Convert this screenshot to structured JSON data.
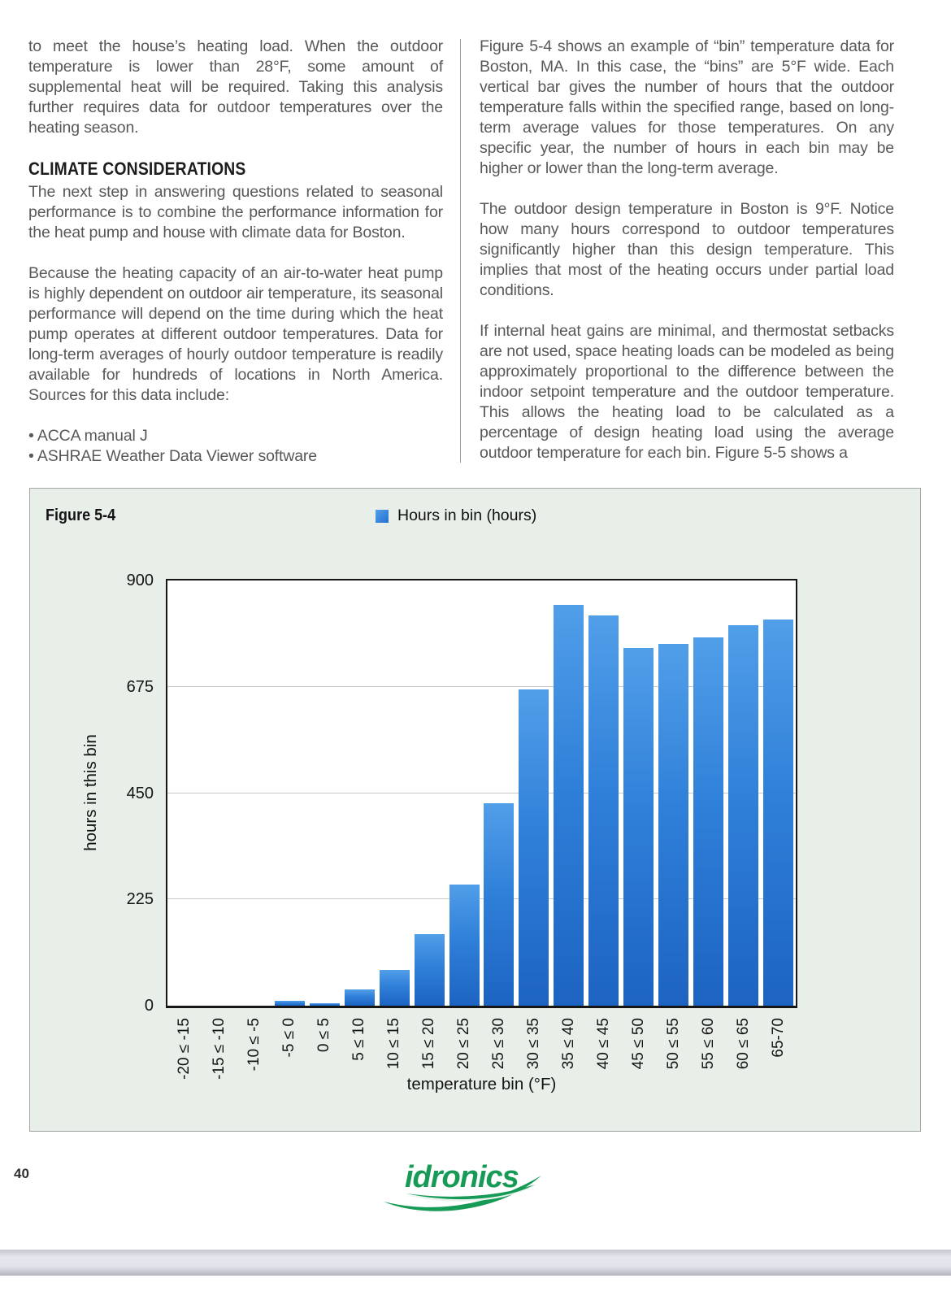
{
  "article": {
    "left_column": {
      "para1": "to meet the house’s heating load. When the outdoor temperature is lower than 28°F, some amount of supplemental heat will be required. Taking this analysis further requires data for outdoor temperatures over the heating season.",
      "heading": "CLIMATE CONSIDERATIONS",
      "para2": "The next step in answering questions related to seasonal performance is to combine the performance information for the heat pump and house with climate data for Boston.",
      "para3": "Because the heating capacity of an air-to-water heat pump is highly dependent on outdoor air temperature, its seasonal performance will depend on the time during which the heat pump operates at different outdoor temperatures. Data for long-term averages of hourly outdoor temperature is readily available for hundreds of locations in North America. Sources for this data include:",
      "bullets": [
        "ACCA manual J",
        "ASHRAE Weather Data Viewer software"
      ]
    },
    "right_column": {
      "para1": "Figure 5-4 shows an example of “bin” temperature data for Boston, MA. In this case, the “bins” are 5°F wide. Each vertical bar gives the number of hours that the outdoor temperature falls within the specified range, based on long-term average values for those temperatures. On any specific year, the number of hours in each bin may be higher or lower than the long-term average.",
      "para2": "The outdoor design temperature in Boston is 9°F. Notice how many hours correspond to outdoor temperatures significantly higher than this design temperature. This implies that most of the heating occurs under partial load conditions.",
      "para3": "If internal heat gains are minimal, and thermostat setbacks are not used, space heating loads can be modeled as being approximately proportional to the difference between the indoor setpoint temperature and the outdoor temperature. This allows the heating load to be calculated as a percentage of design heating load using the average outdoor temperature for each bin. Figure 5-5 shows a"
    }
  },
  "figure": {
    "label": "Figure 5-4",
    "legend_label": "Hours in bin (hours)"
  },
  "chart_data": {
    "type": "bar",
    "title": "",
    "legend": [
      "Hours in bin (hours)"
    ],
    "legend_position": "top",
    "categories": [
      "-20 ≤ -15",
      "-15 ≤ -10",
      "-10 ≤ -5",
      "-5 ≤ 0",
      "0 ≤ 5",
      "5 ≤ 10",
      "10 ≤ 15",
      "15 ≤ 20",
      "20 ≤ 25",
      "25 ≤ 30",
      "30 ≤ 35",
      "35 ≤ 40",
      "40 ≤ 45",
      "45 ≤ 50",
      "50 ≤ 55",
      "55 ≤ 60",
      "60 ≤ 65",
      "65-70"
    ],
    "values": [
      0,
      0,
      0,
      10,
      6,
      34,
      76,
      152,
      257,
      428,
      670,
      849,
      826,
      757,
      765,
      779,
      805,
      817
    ],
    "xlabel": "temperature bin (°F)",
    "ylabel": "hours in this bin",
    "ylim": [
      0,
      900
    ],
    "yticks": [
      0,
      225,
      450,
      675,
      900
    ],
    "grid": true,
    "bar_color_top": "#519ee9",
    "bar_color_bottom": "#1d63c2",
    "legend_color": "#2e7fd8"
  },
  "footer": {
    "page_number": "40",
    "logo_text": "idronics",
    "logo_color": "#169a55"
  }
}
